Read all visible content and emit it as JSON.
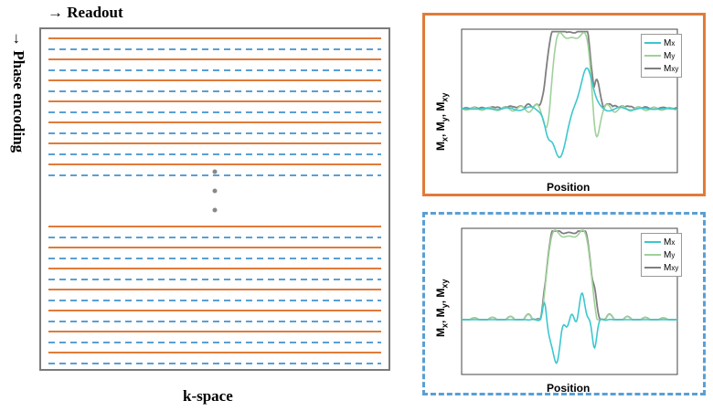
{
  "labels": {
    "readout": "→ Readout",
    "phase_encoding": "→ Phase encoding",
    "kspace": "k-space",
    "dots": "⋮"
  },
  "colors": {
    "solid_line": "#e07b39",
    "dashed_line": "#5a9fd4",
    "mx": "#3cc7cf",
    "my": "#9fd19a",
    "mxy": "#7f7f7f"
  },
  "plots": [
    {
      "id": "top",
      "ylabel": "Mx, My, Mxy",
      "xlabel": "Position",
      "legend": [
        {
          "base": "M",
          "sub": "x"
        },
        {
          "base": "M",
          "sub": "y"
        },
        {
          "base": "M",
          "sub": "xy"
        }
      ],
      "xlim": [
        -5,
        5
      ],
      "ylim": [
        -0.8,
        1.0
      ]
    },
    {
      "id": "bottom",
      "ylabel": "Mx, My, Mxy",
      "xlabel": "Position",
      "legend": [
        {
          "base": "M",
          "sub": "x"
        },
        {
          "base": "M",
          "sub": "y"
        },
        {
          "base": "M",
          "sub": "xy"
        }
      ],
      "xlim": [
        -5,
        5
      ],
      "ylim": [
        -0.6,
        1.0
      ]
    }
  ]
}
